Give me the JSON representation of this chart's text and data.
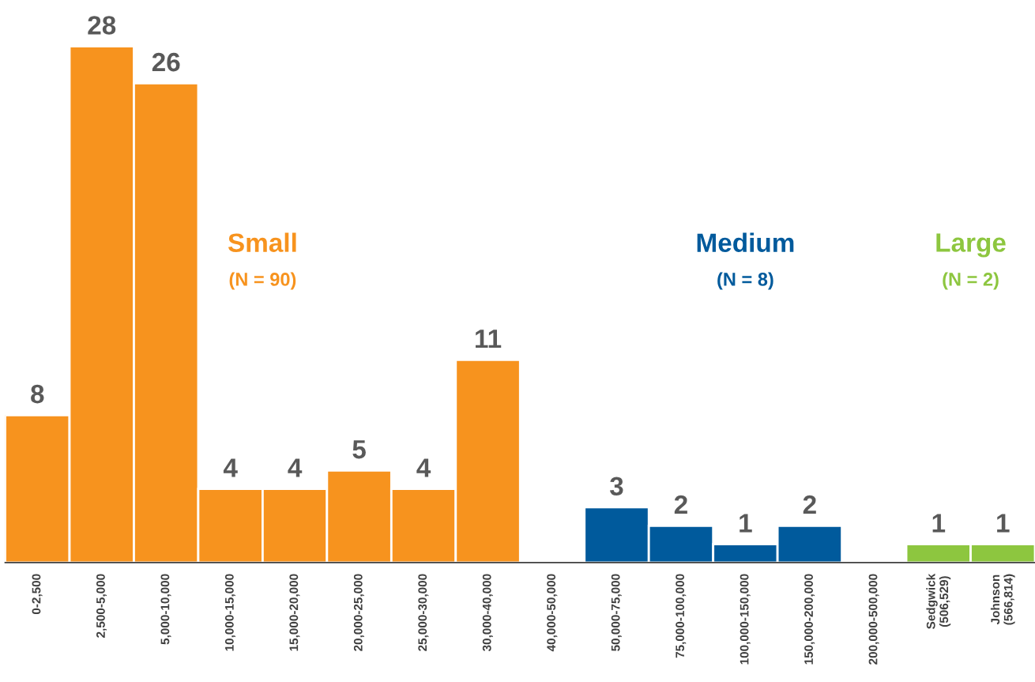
{
  "chart_data": {
    "type": "bar",
    "categories": [
      "0-2,500",
      "2,500-5,000",
      "5,000-10,000",
      "10,000-15,000",
      "15,000-20,000",
      "20,000-25,000",
      "25,000-30,000",
      "30,000-40,000",
      "40,000-50,000",
      "50,000-75,000",
      "75,000-100,000",
      "100,000-150,000",
      "150,000-200,000",
      "200,000-500,000",
      "Sedgwick\n(506,529)",
      "Johnson\n(566,814)"
    ],
    "series": [
      {
        "name": "Small",
        "color": "#f7931e",
        "values": [
          8,
          28,
          26,
          4,
          4,
          5,
          4,
          11,
          null,
          null,
          null,
          null,
          null,
          null,
          null,
          null
        ]
      },
      {
        "name": "Medium",
        "color": "#005a9c",
        "values": [
          null,
          null,
          null,
          null,
          null,
          null,
          null,
          null,
          null,
          3,
          2,
          1,
          2,
          null,
          null,
          null
        ]
      },
      {
        "name": "Large",
        "color": "#8dc63f",
        "values": [
          null,
          null,
          null,
          null,
          null,
          null,
          null,
          null,
          null,
          null,
          null,
          null,
          null,
          null,
          1,
          1
        ]
      }
    ],
    "annotations": [
      "(N = 90)",
      "(N = 8)",
      "(N = 2)"
    ],
    "data_labels": true,
    "tick_labels": "x",
    "grid": false,
    "legend": false
  }
}
